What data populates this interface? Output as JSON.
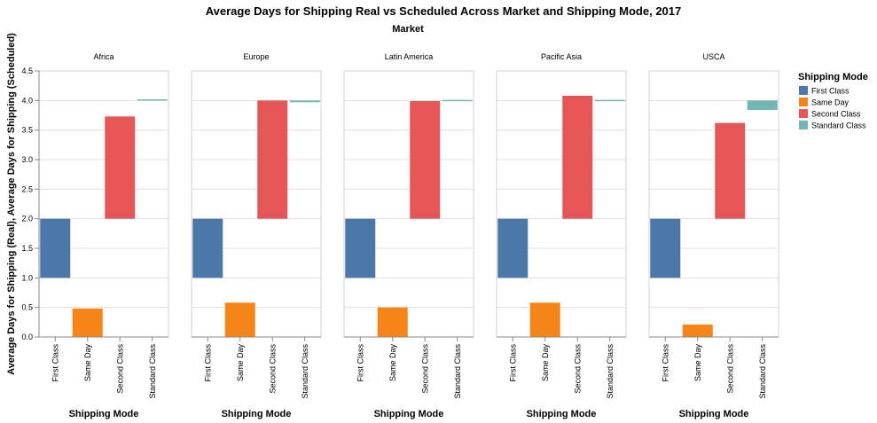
{
  "chart_data": {
    "type": "bar",
    "title": "Average Days for Shipping Real vs Scheduled Across Market and Shipping Mode, 2017",
    "column_header": "Market",
    "xlabel": "Shipping Mode",
    "ylabel": "Average Days for Shipping (Real), Average Days for Shipping (Scheduled)",
    "ylim": [
      0,
      4.5
    ],
    "yticks": [
      "0.0",
      "0.5",
      "1.0",
      "1.5",
      "2.0",
      "2.5",
      "3.0",
      "3.5",
      "4.0",
      "4.5"
    ],
    "grid": true,
    "legend_position": "right",
    "legend_title": "Shipping Mode",
    "categories": [
      "First Class",
      "Same Day",
      "Second Class",
      "Standard Class"
    ],
    "colors": {
      "First Class": "#4c78a8",
      "Same Day": "#f58518",
      "Second Class": "#e45756",
      "Standard Class": "#72b7b2"
    },
    "facets": [
      {
        "market": "Africa",
        "bars": [
          {
            "mode": "First Class",
            "real": 1.0,
            "scheduled": 2.0
          },
          {
            "mode": "Same Day",
            "real": 0.48,
            "scheduled": 0.0
          },
          {
            "mode": "Second Class",
            "real": 3.73,
            "scheduled": 2.0
          },
          {
            "mode": "Standard Class",
            "real": 4.02,
            "scheduled": 4.0
          }
        ]
      },
      {
        "market": "Europe",
        "bars": [
          {
            "mode": "First Class",
            "real": 1.0,
            "scheduled": 2.0
          },
          {
            "mode": "Same Day",
            "real": 0.58,
            "scheduled": 0.0
          },
          {
            "mode": "Second Class",
            "real": 4.0,
            "scheduled": 2.0
          },
          {
            "mode": "Standard Class",
            "real": 3.97,
            "scheduled": 4.0
          }
        ]
      },
      {
        "market": "Latin America",
        "bars": [
          {
            "mode": "First Class",
            "real": 1.0,
            "scheduled": 2.0
          },
          {
            "mode": "Same Day",
            "real": 0.5,
            "scheduled": 0.0
          },
          {
            "mode": "Second Class",
            "real": 3.99,
            "scheduled": 2.0
          },
          {
            "mode": "Standard Class",
            "real": 4.01,
            "scheduled": 4.0
          }
        ]
      },
      {
        "market": "Pacific Asia",
        "bars": [
          {
            "mode": "First Class",
            "real": 1.0,
            "scheduled": 2.0
          },
          {
            "mode": "Same Day",
            "real": 0.58,
            "scheduled": 0.0
          },
          {
            "mode": "Second Class",
            "real": 4.08,
            "scheduled": 2.0
          },
          {
            "mode": "Standard Class",
            "real": 4.01,
            "scheduled": 4.0
          }
        ]
      },
      {
        "market": "USCA",
        "bars": [
          {
            "mode": "First Class",
            "real": 1.0,
            "scheduled": 2.0
          },
          {
            "mode": "Same Day",
            "real": 0.21,
            "scheduled": 0.0
          },
          {
            "mode": "Second Class",
            "real": 3.62,
            "scheduled": 2.0
          },
          {
            "mode": "Standard Class",
            "real": 3.84,
            "scheduled": 4.0
          }
        ]
      }
    ]
  }
}
